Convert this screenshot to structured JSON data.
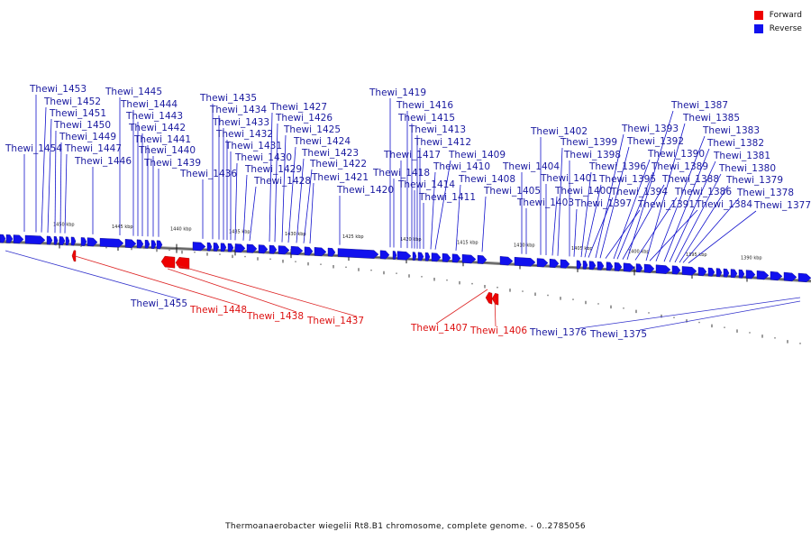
{
  "legend": {
    "forward_label": "Forward",
    "reverse_label": "Reverse",
    "forward_color": "#ee0000",
    "reverse_color": "#1111ee"
  },
  "caption": "Thermoanaerobacter wiegelii Rt8.B1 chromosome, complete genome. - 0..2785056",
  "ticks": [
    {
      "label": "1450 kbp"
    },
    {
      "label": "1445 kbp"
    },
    {
      "label": "1440 kbp"
    },
    {
      "label": "1435 kbp"
    },
    {
      "label": "1430 kbp"
    },
    {
      "label": "1425 kbp"
    },
    {
      "label": "1420 kbp"
    },
    {
      "label": "1415 kbp"
    },
    {
      "label": "1410 kbp"
    },
    {
      "label": "1405 kbp"
    },
    {
      "label": "1400 kbp"
    },
    {
      "label": "1395 kbp"
    },
    {
      "label": "1390 kbp"
    }
  ],
  "reverse_genes": [
    "Thewi_1454",
    "Thewi_1453",
    "Thewi_1452",
    "Thewi_1451",
    "Thewi_1450",
    "Thewi_1449",
    "Thewi_1447",
    "Thewi_1446",
    "Thewi_1445",
    "Thewi_1444",
    "Thewi_1443",
    "Thewi_1442",
    "Thewi_1441",
    "Thewi_1440",
    "Thewi_1439",
    "Thewi_1436",
    "Thewi_1435",
    "Thewi_1434",
    "Thewi_1433",
    "Thewi_1432",
    "Thewi_1431",
    "Thewi_1430",
    "Thewi_1429",
    "Thewi_1428",
    "Thewi_1427",
    "Thewi_1426",
    "Thewi_1425",
    "Thewi_1424",
    "Thewi_1423",
    "Thewi_1422",
    "Thewi_1421",
    "Thewi_1420",
    "Thewi_1419",
    "Thewi_1418",
    "Thewi_1417",
    "Thewi_1416",
    "Thewi_1415",
    "Thewi_1414",
    "Thewi_1413",
    "Thewi_1412",
    "Thewi_1411",
    "Thewi_1410",
    "Thewi_1409",
    "Thewi_1408",
    "Thewi_1405",
    "Thewi_1404",
    "Thewi_1403",
    "Thewi_1402",
    "Thewi_1401",
    "Thewi_1400",
    "Thewi_1399",
    "Thewi_1398",
    "Thewi_1397",
    "Thewi_1396",
    "Thewi_1395",
    "Thewi_1394",
    "Thewi_1393",
    "Thewi_1392",
    "Thewi_1391",
    "Thewi_1390",
    "Thewi_1389",
    "Thewi_1388",
    "Thewi_1387",
    "Thewi_1386",
    "Thewi_1385",
    "Thewi_1384",
    "Thewi_1383",
    "Thewi_1382",
    "Thewi_1381",
    "Thewi_1380",
    "Thewi_1379",
    "Thewi_1378",
    "Thewi_1377"
  ],
  "lower_labels": [
    {
      "text": "Thewi_1455",
      "strand": "reverse"
    },
    {
      "text": "Thewi_1448",
      "strand": "forward"
    },
    {
      "text": "Thewi_1438",
      "strand": "forward"
    },
    {
      "text": "Thewi_1437",
      "strand": "forward"
    },
    {
      "text": "Thewi_1407",
      "strand": "forward"
    },
    {
      "text": "Thewi_1406",
      "strand": "forward"
    },
    {
      "text": "Thewi_1376",
      "strand": "reverse"
    },
    {
      "text": "Thewi_1375",
      "strand": "reverse"
    }
  ]
}
